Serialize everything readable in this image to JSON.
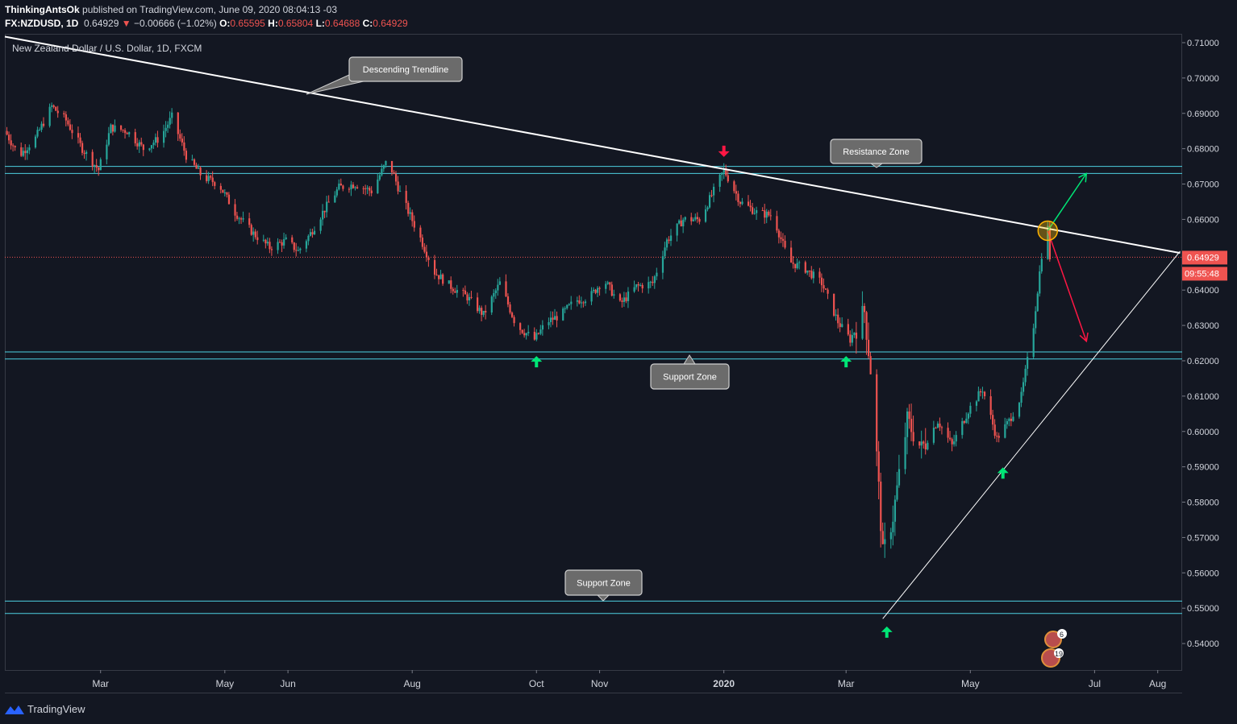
{
  "header": {
    "author": "ThinkingAntsOk",
    "published_text": "published on TradingView.com, June 09, 2020 08:04:13 -03",
    "symbol": "FX:NZDUSD, 1D",
    "last": "0.64929",
    "change": "−0.00666 (−1.02%)",
    "o_label": "O:",
    "o": "0.65595",
    "h_label": "H:",
    "h": "0.65804",
    "l_label": "L:",
    "l": "0.64688",
    "c_label": "C:",
    "c": "0.64929"
  },
  "footer": {
    "brand": "TradingView"
  },
  "chart_data": {
    "type": "candlestick",
    "title": "New Zealand Dollar / U.S. Dollar, 1D, FXCM",
    "x_tick_labels": [
      "Mar",
      "May",
      "Jun",
      "Aug",
      "Oct",
      "Nov",
      "2020",
      "Mar",
      "May",
      "Jul",
      "Aug"
    ],
    "y_tick_labels": [
      "0.71000",
      "0.70000",
      "0.69000",
      "0.68000",
      "0.67000",
      "0.66000",
      "0.65000",
      "0.64000",
      "0.63000",
      "0.62000",
      "0.61000",
      "0.60000",
      "0.59000",
      "0.58000",
      "0.57000",
      "0.56000",
      "0.55000",
      "0.54000"
    ],
    "ylim": [
      0.5325,
      0.7125
    ],
    "x_range": [
      "2019-01-13",
      "2020-08-13"
    ],
    "last_price": 0.64929,
    "last_price_label": "0.64929",
    "countdown": "09:55:48",
    "zones": [
      {
        "name": "Resistance Zone",
        "low": 0.673,
        "high": 0.675
      },
      {
        "name": "Support Zone",
        "low": 0.6205,
        "high": 0.6225
      },
      {
        "name": "Support Zone",
        "low": 0.5485,
        "high": 0.552
      }
    ],
    "annotations": [
      "Descending Trendline",
      "Resistance Zone",
      "Support Zone",
      "Support Zone"
    ],
    "trendlines": [
      {
        "name": "Descending Trendline",
        "p1": [
          "2019-01-13",
          0.7117
        ],
        "p2": [
          "2020-08-12",
          0.6505
        ]
      },
      {
        "name": "Ascending Trendline",
        "p1": [
          "2020-03-19",
          0.547
        ],
        "p2": [
          "2020-08-12",
          0.651
        ]
      }
    ],
    "scenario_arrows": [
      {
        "direction": "up",
        "from": [
          "2020-06-08",
          0.6568
        ],
        "to": [
          "2020-06-27",
          0.673
        ]
      },
      {
        "direction": "down",
        "from": [
          "2020-06-08",
          0.6568
        ],
        "to": [
          "2020-06-27",
          0.6255
        ]
      }
    ],
    "signal_arrows": [
      {
        "type": "sell",
        "date": "2020-01-01",
        "price": 0.6795
      },
      {
        "type": "buy",
        "date": "2019-10-01",
        "price": 0.6195
      },
      {
        "type": "buy",
        "date": "2020-03-01",
        "price": 0.6195
      },
      {
        "type": "buy",
        "date": "2020-03-21",
        "price": 0.543
      },
      {
        "type": "buy",
        "date": "2020-05-17",
        "price": 0.588
      }
    ],
    "event_badges": [
      "6",
      "19"
    ],
    "price_path": [
      [
        "2019-01-13",
        0.685
      ],
      [
        "2019-01-20",
        0.678
      ],
      [
        "2019-01-28",
        0.683
      ],
      [
        "2019-02-05",
        0.692
      ],
      [
        "2019-02-12",
        0.688
      ],
      [
        "2019-02-20",
        0.68
      ],
      [
        "2019-02-28",
        0.674
      ],
      [
        "2019-03-06",
        0.686
      ],
      [
        "2019-03-14",
        0.685
      ],
      [
        "2019-03-22",
        0.68
      ],
      [
        "2019-03-30",
        0.683
      ],
      [
        "2019-04-05",
        0.689
      ],
      [
        "2019-04-12",
        0.678
      ],
      [
        "2019-04-20",
        0.672
      ],
      [
        "2019-04-28",
        0.67
      ],
      [
        "2019-05-06",
        0.662
      ],
      [
        "2019-05-15",
        0.656
      ],
      [
        "2019-05-23",
        0.652
      ],
      [
        "2019-05-31",
        0.654
      ],
      [
        "2019-06-06",
        0.651
      ],
      [
        "2019-06-12",
        0.656
      ],
      [
        "2019-06-18",
        0.662
      ],
      [
        "2019-06-26",
        0.669
      ],
      [
        "2019-07-04",
        0.67
      ],
      [
        "2019-07-12",
        0.668
      ],
      [
        "2019-07-20",
        0.677
      ],
      [
        "2019-07-27",
        0.666
      ],
      [
        "2019-08-04",
        0.656
      ],
      [
        "2019-08-12",
        0.645
      ],
      [
        "2019-08-20",
        0.641
      ],
      [
        "2019-08-28",
        0.638
      ],
      [
        "2019-09-05",
        0.633
      ],
      [
        "2019-09-13",
        0.642
      ],
      [
        "2019-09-21",
        0.63
      ],
      [
        "2019-09-30",
        0.626
      ],
      [
        "2019-10-06",
        0.631
      ],
      [
        "2019-10-13",
        0.633
      ],
      [
        "2019-10-20",
        0.637
      ],
      [
        "2019-10-27",
        0.638
      ],
      [
        "2019-11-03",
        0.643
      ],
      [
        "2019-11-11",
        0.636
      ],
      [
        "2019-11-19",
        0.641
      ],
      [
        "2019-11-27",
        0.642
      ],
      [
        "2019-12-04",
        0.654
      ],
      [
        "2019-12-12",
        0.66
      ],
      [
        "2019-12-20",
        0.66
      ],
      [
        "2019-12-27",
        0.668
      ],
      [
        "2020-01-01",
        0.674
      ],
      [
        "2020-01-09",
        0.665
      ],
      [
        "2020-01-17",
        0.662
      ],
      [
        "2020-01-25",
        0.661
      ],
      [
        "2020-02-02",
        0.648
      ],
      [
        "2020-02-10",
        0.646
      ],
      [
        "2020-02-18",
        0.642
      ],
      [
        "2020-02-26",
        0.631
      ],
      [
        "2020-03-03",
        0.626
      ],
      [
        "2020-03-10",
        0.634
      ],
      [
        "2020-03-14",
        0.612
      ],
      [
        "2020-03-19",
        0.565
      ],
      [
        "2020-03-24",
        0.576
      ],
      [
        "2020-03-31",
        0.603
      ],
      [
        "2020-04-07",
        0.595
      ],
      [
        "2020-04-15",
        0.603
      ],
      [
        "2020-04-22",
        0.596
      ],
      [
        "2020-04-30",
        0.606
      ],
      [
        "2020-05-07",
        0.612
      ],
      [
        "2020-05-14",
        0.598
      ],
      [
        "2020-05-20",
        0.603
      ],
      [
        "2020-05-26",
        0.61
      ],
      [
        "2020-06-01",
        0.63
      ],
      [
        "2020-06-05",
        0.65
      ],
      [
        "2020-06-08",
        0.6575
      ],
      [
        "2020-06-09",
        0.6493
      ]
    ]
  }
}
